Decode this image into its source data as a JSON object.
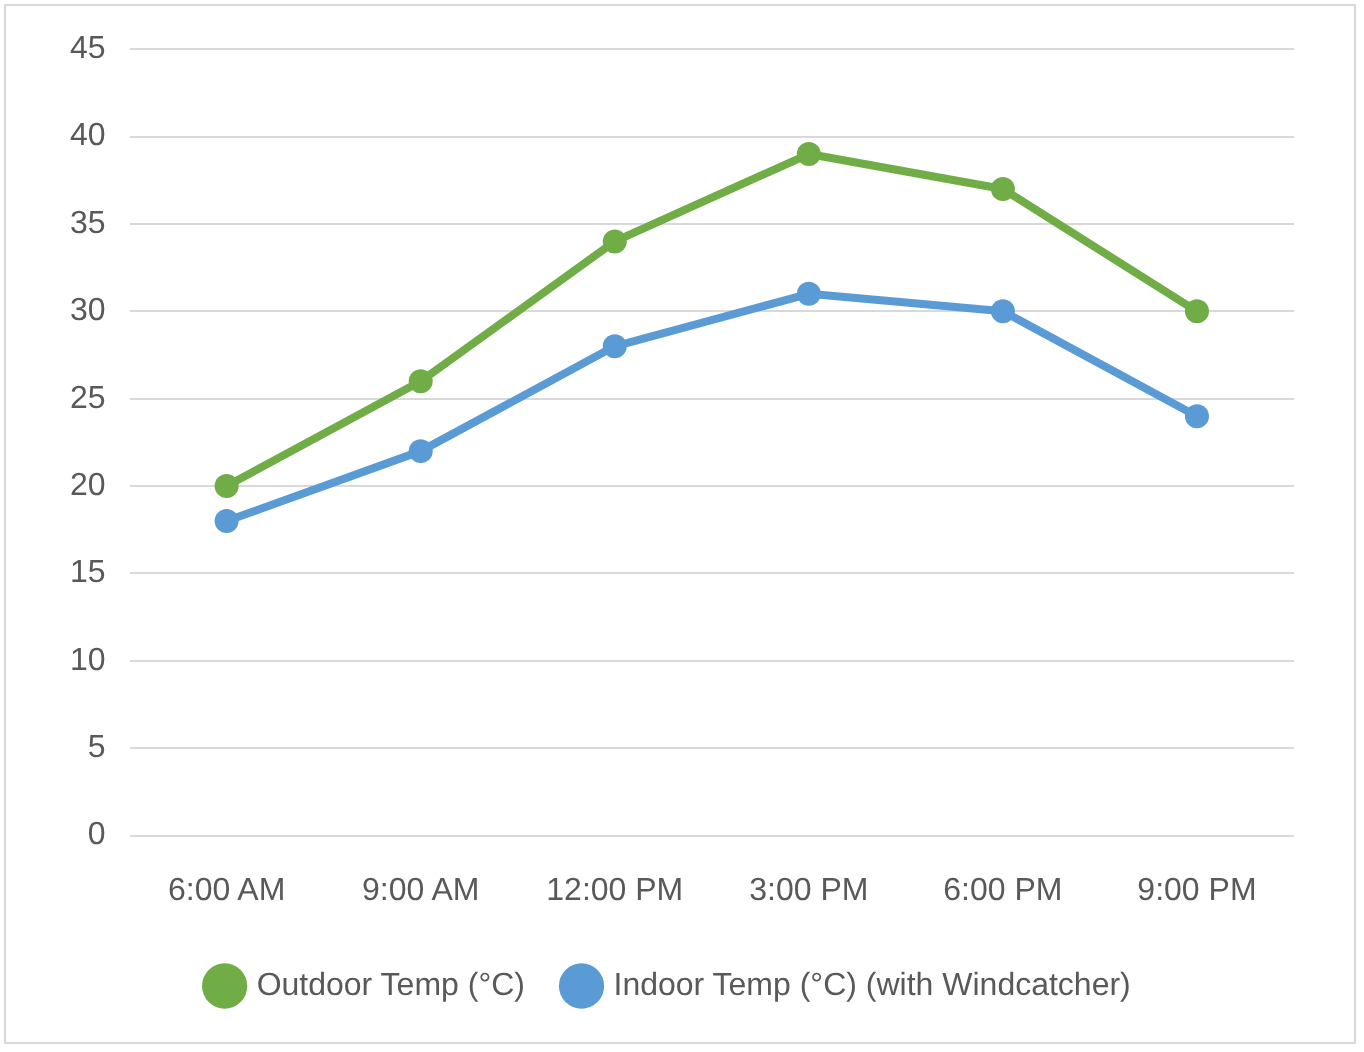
{
  "chart_data": {
    "type": "line",
    "categories": [
      "6:00 AM",
      "9:00 AM",
      "12:00 PM",
      "3:00 PM",
      "6:00 PM",
      "9:00 PM"
    ],
    "series": [
      {
        "name": "Outdoor Temp (°C)",
        "color": "#70ad47",
        "values": [
          20,
          26,
          34,
          39,
          37,
          30
        ]
      },
      {
        "name": "Indoor Temp (°C) (with Windcatcher)",
        "color": "#5b9bd5",
        "values": [
          18,
          22,
          28,
          31,
          30,
          24
        ]
      }
    ],
    "ylim": [
      0,
      45
    ],
    "yticks": [
      0,
      5,
      10,
      15,
      20,
      25,
      30,
      35,
      40,
      45
    ],
    "grid": "y",
    "legend": "bottom",
    "marker": "circle",
    "line_style": "solid"
  }
}
